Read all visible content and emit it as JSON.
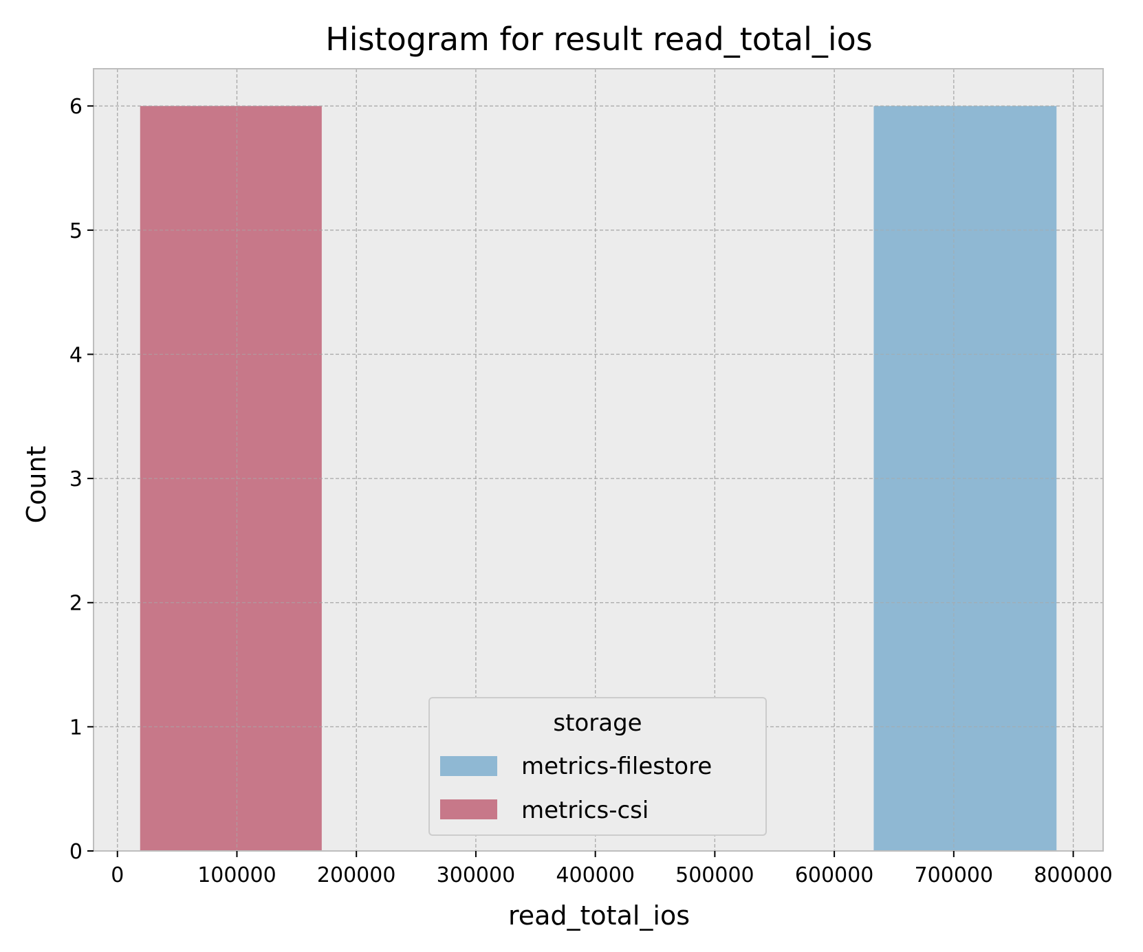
{
  "chart_data": {
    "type": "bar",
    "title": "Histogram for result read_total_ios",
    "xlabel": "read_total_ios",
    "ylabel": "Count",
    "xlim": [
      -20000,
      825000
    ],
    "ylim": [
      0,
      6.3
    ],
    "xticks": [
      0,
      100000,
      200000,
      300000,
      400000,
      500000,
      600000,
      700000,
      800000
    ],
    "xtick_labels": [
      "0",
      "100000",
      "200000",
      "300000",
      "400000",
      "500000",
      "600000",
      "700000",
      "800000"
    ],
    "yticks": [
      0,
      1,
      2,
      3,
      4,
      5,
      6
    ],
    "ytick_labels": [
      "0",
      "1",
      "2",
      "3",
      "4",
      "5",
      "6"
    ],
    "grid": true,
    "series": [
      {
        "name": "metrics-filestore",
        "color": "#8fb8d3",
        "bins": [
          {
            "start": 633000,
            "end": 786000,
            "count": 6
          }
        ]
      },
      {
        "name": "metrics-csi",
        "color": "#c77889",
        "bins": [
          {
            "start": 19000,
            "end": 171000,
            "count": 6
          }
        ]
      }
    ],
    "legend": {
      "title": "storage",
      "entries": [
        "metrics-filestore",
        "metrics-csi"
      ],
      "placement": "bottom-center"
    }
  }
}
